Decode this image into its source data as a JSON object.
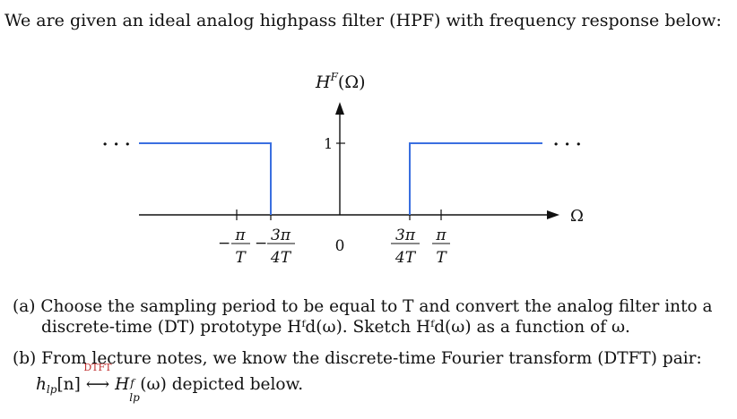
{
  "intro": "We are given an ideal analog highpass filter (HPF) with frequency response below:",
  "plot": {
    "title": "H^F(Ω)",
    "title_main": "H",
    "title_sup": "F",
    "title_arg": "(Ω)",
    "axis_label": "Ω",
    "y_tick": "1",
    "x_ticks": [
      {
        "sign": "−",
        "num": "π",
        "den": "T"
      },
      {
        "sign": "−",
        "num": "3π",
        "den": "4T"
      },
      {
        "sign": "",
        "num": "0",
        "den": ""
      },
      {
        "sign": "",
        "num": "3π",
        "den": "4T"
      },
      {
        "sign": "",
        "num": "π",
        "den": "T"
      }
    ],
    "ellipsis": "· · ·",
    "colors": {
      "response": "#3a6fe0",
      "axes": "#111111"
    },
    "response": {
      "passband_gain": 1,
      "cutoffs": [
        "−3π/4T",
        "3π/4T"
      ]
    }
  },
  "part_a": {
    "label": "(a)",
    "line1": "Choose the sampling period to be equal to T and convert the analog filter into a",
    "line2": "discrete-time (DT) prototype Hᶠd(ω). Sketch Hᶠd(ω) as a function of ω."
  },
  "part_b": {
    "label": "(b)",
    "line1": "From lecture notes, we know the discrete-time Fourier transform (DTFT) pair:",
    "pair_left": "h",
    "pair_left_sub": "lp",
    "pair_left_arg": "[n]",
    "transform_label": "DTFT",
    "pair_arrow": "⟷",
    "pair_right": "H",
    "pair_right_sup": "f",
    "pair_right_sub": "lp",
    "pair_right_arg": "(ω)",
    "pair_tail": "depicted below."
  }
}
